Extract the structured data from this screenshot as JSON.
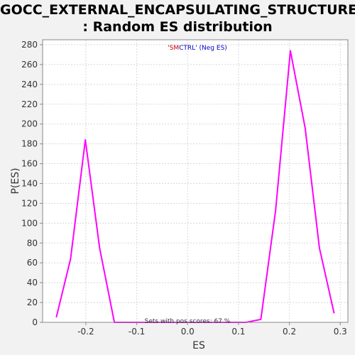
{
  "title": {
    "line1": "GOCC_EXTERNAL_ENCAPSULATING_STRUCTURE",
    "line2": ": Random ES distribution"
  },
  "legend": {
    "part1": "'SM",
    "part2": "CTRL' (Neg ES)",
    "part1_color": "#cc0000",
    "part2_color": "#0000cc"
  },
  "footer_note": "Sets with pos scores: 67 %",
  "colors": {
    "line": "#ff00ff",
    "plot_bg": "#ffffff",
    "grid": "#d8d8d8",
    "page_bg": "#f2f2f2"
  },
  "chart_data": {
    "type": "line",
    "xlabel": "ES",
    "ylabel": "P(ES)",
    "xlim": [
      -0.285,
      0.315
    ],
    "ylim": [
      0,
      285
    ],
    "xticks": [
      -0.2,
      -0.1,
      0.0,
      0.1,
      0.2,
      0.3
    ],
    "xtick_labels": [
      "-0.2",
      "-0.1",
      "0.0",
      "0.1",
      "0.2",
      "0.3"
    ],
    "yticks": [
      0,
      20,
      40,
      60,
      80,
      100,
      120,
      140,
      160,
      180,
      200,
      220,
      240,
      260,
      280
    ],
    "ytick_labels": [
      "0",
      "20",
      "40",
      "60",
      "80",
      "100",
      "120",
      "140",
      "160",
      "180",
      "200",
      "220",
      "240",
      "260",
      "280"
    ],
    "grid": true,
    "series": [
      {
        "x": [
          -0.258,
          -0.23,
          -0.201,
          -0.173,
          -0.144,
          -0.115,
          -0.087,
          -0.058,
          -0.029,
          0.0,
          0.029,
          0.058,
          0.087,
          0.115,
          0.144,
          0.173,
          0.202,
          0.231,
          0.259,
          0.288
        ],
        "y": [
          5,
          64,
          184,
          75,
          0,
          0,
          0,
          0,
          0,
          0,
          0,
          0,
          0,
          0,
          3,
          113,
          274,
          196,
          75,
          9
        ]
      }
    ]
  }
}
